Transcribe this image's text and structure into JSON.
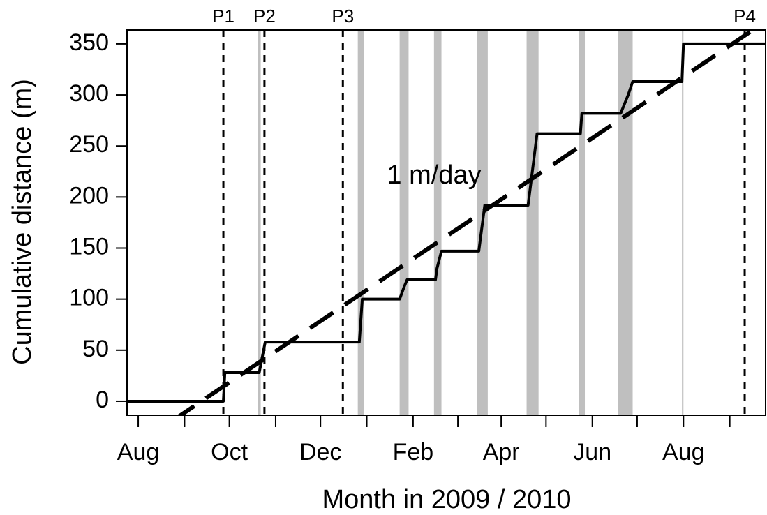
{
  "chart_data": {
    "type": "line",
    "xlabel": "Month in 2009 / 2010",
    "ylabel": "Cumulative distance (m)",
    "xlim": [
      -7.5,
      420
    ],
    "ylim": [
      -13.7,
      363.6
    ],
    "xticks": [
      {
        "value": 0,
        "label": "Aug"
      },
      {
        "value": 61,
        "label": "Oct"
      },
      {
        "value": 122,
        "label": "Dec"
      },
      {
        "value": 184,
        "label": "Feb"
      },
      {
        "value": 243,
        "label": "Apr"
      },
      {
        "value": 304,
        "label": "Jun"
      },
      {
        "value": 365,
        "label": "Aug"
      }
    ],
    "xminor_ticks": [
      31,
      92,
      153,
      214,
      273,
      334,
      396
    ],
    "yticks": [
      0,
      50,
      100,
      150,
      200,
      250,
      300,
      350
    ],
    "x": [
      -7.5,
      57,
      58,
      81,
      85,
      148,
      150,
      175,
      178,
      180,
      199,
      200,
      203,
      228,
      232,
      261,
      267,
      296,
      297,
      323,
      328,
      331,
      364,
      365,
      420
    ],
    "series": [
      {
        "color": "#000000",
        "values": [
          0,
          0,
          28,
          28,
          58,
          58,
          100,
          100,
          112,
          119,
          119,
          130,
          147,
          147,
          192,
          192,
          262,
          262,
          282,
          282,
          300,
          313,
          313,
          350,
          350
        ]
      }
    ],
    "trend": {
      "label": "1 m/day",
      "color": "#000000",
      "x": [
        22,
        418
      ],
      "values": [
        -20,
        370
      ]
    },
    "vlines": [
      {
        "x": 57,
        "label": "P1"
      },
      {
        "x": 84.5,
        "label": "P2"
      },
      {
        "x": 137,
        "label": "P3"
      },
      {
        "x": 406,
        "label": "P4"
      }
    ],
    "bands": [
      [
        80,
        82
      ],
      [
        147,
        151
      ],
      [
        175,
        181
      ],
      [
        198,
        203
      ],
      [
        227,
        234
      ],
      [
        260,
        268
      ],
      [
        295,
        299
      ],
      [
        321,
        331
      ],
      [
        364,
        365
      ]
    ],
    "band_color": "#bfbfbf"
  }
}
